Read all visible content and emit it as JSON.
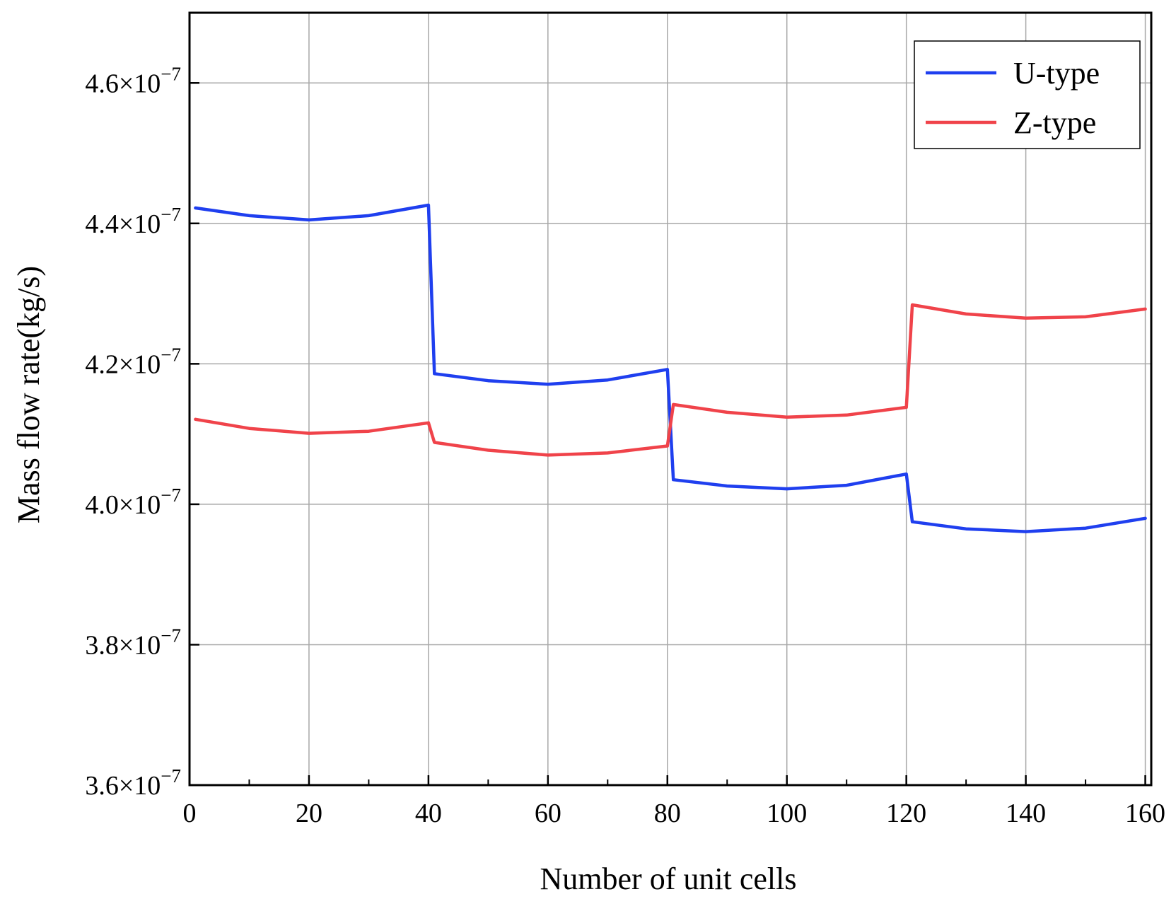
{
  "chart_data": {
    "type": "line",
    "title": "",
    "xlabel": "Number of unit cells",
    "ylabel": "Mass flow rate(kg/s)",
    "xlim": [
      0,
      161
    ],
    "ylim": [
      3.6e-07,
      4.7e-07
    ],
    "x_ticks": [
      {
        "value": 0,
        "label": "0"
      },
      {
        "value": 20,
        "label": "20"
      },
      {
        "value": 40,
        "label": "40"
      },
      {
        "value": 60,
        "label": "60"
      },
      {
        "value": 80,
        "label": "80"
      },
      {
        "value": 100,
        "label": "100"
      },
      {
        "value": 120,
        "label": "120"
      },
      {
        "value": 140,
        "label": "140"
      },
      {
        "value": 160,
        "label": "160"
      }
    ],
    "x_minor_step": 10,
    "y_ticks": [
      {
        "value": 3.6e-07,
        "mantissa": "3.6",
        "base": "×10",
        "exponent": "−7"
      },
      {
        "value": 3.8e-07,
        "mantissa": "3.8",
        "base": "×10",
        "exponent": "−7"
      },
      {
        "value": 4e-07,
        "mantissa": "4.0",
        "base": "×10",
        "exponent": "−7"
      },
      {
        "value": 4.2e-07,
        "mantissa": "4.2",
        "base": "×10",
        "exponent": "−7"
      },
      {
        "value": 4.4e-07,
        "mantissa": "4.4",
        "base": "×10",
        "exponent": "−7"
      },
      {
        "value": 4.6e-07,
        "mantissa": "4.6",
        "base": "×10",
        "exponent": "−7"
      }
    ],
    "grid": true,
    "legend_position": "top-right",
    "series": [
      {
        "name": "U-type",
        "color": "#1f3fef",
        "points": [
          [
            1,
            4.422e-07
          ],
          [
            10,
            4.411e-07
          ],
          [
            20,
            4.405e-07
          ],
          [
            30,
            4.411e-07
          ],
          [
            40,
            4.426e-07
          ],
          [
            41,
            4.186e-07
          ],
          [
            50,
            4.176e-07
          ],
          [
            60,
            4.171e-07
          ],
          [
            70,
            4.177e-07
          ],
          [
            80,
            4.192e-07
          ],
          [
            81,
            4.035e-07
          ],
          [
            90,
            4.026e-07
          ],
          [
            100,
            4.022e-07
          ],
          [
            110,
            4.027e-07
          ],
          [
            120,
            4.043e-07
          ],
          [
            121,
            3.975e-07
          ],
          [
            130,
            3.965e-07
          ],
          [
            140,
            3.961e-07
          ],
          [
            150,
            3.966e-07
          ],
          [
            160,
            3.98e-07
          ]
        ]
      },
      {
        "name": "Z-type",
        "color": "#f0434a",
        "points": [
          [
            1,
            4.121e-07
          ],
          [
            10,
            4.108e-07
          ],
          [
            20,
            4.101e-07
          ],
          [
            30,
            4.104e-07
          ],
          [
            40,
            4.116e-07
          ],
          [
            41,
            4.088e-07
          ],
          [
            50,
            4.077e-07
          ],
          [
            60,
            4.07e-07
          ],
          [
            70,
            4.073e-07
          ],
          [
            80,
            4.083e-07
          ],
          [
            81,
            4.142e-07
          ],
          [
            90,
            4.131e-07
          ],
          [
            100,
            4.124e-07
          ],
          [
            110,
            4.127e-07
          ],
          [
            120,
            4.138e-07
          ],
          [
            121,
            4.284e-07
          ],
          [
            130,
            4.271e-07
          ],
          [
            140,
            4.265e-07
          ],
          [
            150,
            4.267e-07
          ],
          [
            160,
            4.278e-07
          ]
        ]
      }
    ]
  }
}
